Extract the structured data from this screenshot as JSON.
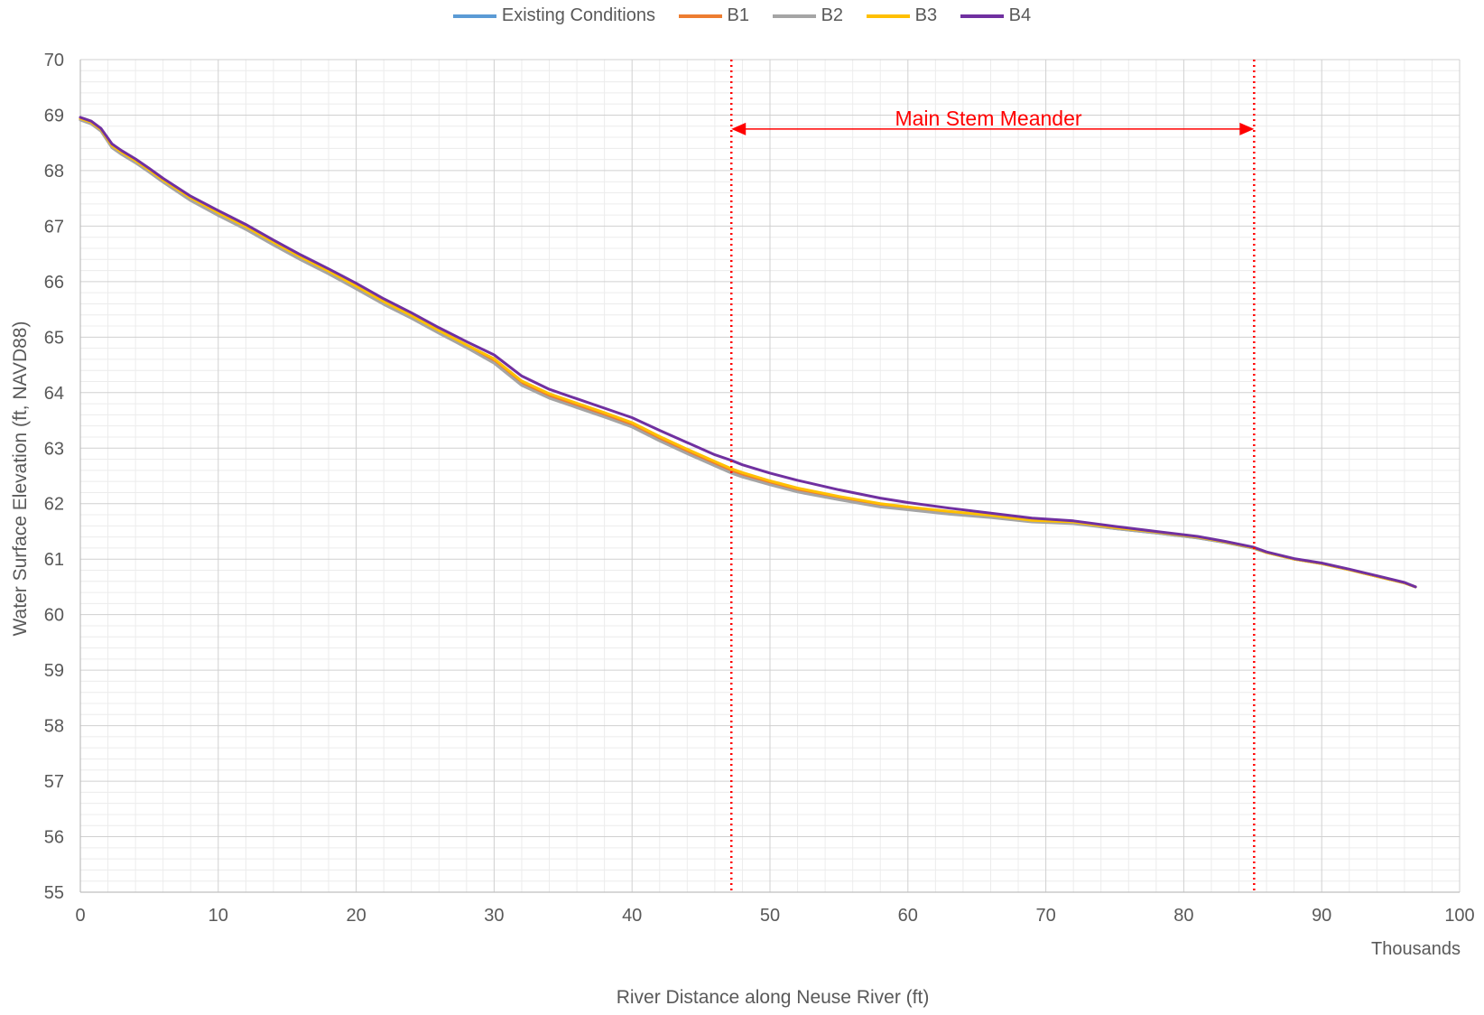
{
  "chart_data": {
    "type": "line",
    "title": "",
    "xlabel": "River Distance along Neuse River (ft)",
    "x_units_label": "Thousands",
    "ylabel": "Water Surface Elevation (ft, NAVD88)",
    "xlim": [
      0,
      100
    ],
    "ylim": [
      55,
      70
    ],
    "x_ticks": [
      "0",
      "10",
      "20",
      "30",
      "40",
      "50",
      "60",
      "70",
      "80",
      "90",
      "100"
    ],
    "y_ticks": [
      "55",
      "56",
      "57",
      "58",
      "59",
      "60",
      "61",
      "62",
      "63",
      "64",
      "65",
      "66",
      "67",
      "68",
      "69",
      "70"
    ],
    "grid": true,
    "minor_grid": true,
    "legend_position": "top",
    "annotation": {
      "text": "Main Stem Meander",
      "x_start": 47.2,
      "x_end": 85.1,
      "y": 68.75,
      "color": "#ff0000"
    },
    "series": [
      {
        "name": "Existing Conditions",
        "color": "#5b9bd5",
        "x": [
          0,
          0.8,
          1.5,
          2.3,
          3,
          4,
          5,
          6,
          8,
          10,
          12,
          14,
          16,
          18,
          20,
          22,
          24,
          26,
          28,
          30,
          32,
          34,
          36,
          38,
          40,
          42,
          44,
          46,
          47.2,
          48,
          50,
          52,
          55,
          58,
          60,
          63,
          66,
          69,
          72,
          75,
          78,
          81,
          83,
          85,
          86,
          88,
          90,
          92,
          94,
          96,
          96.8
        ],
        "values": [
          68.92,
          68.85,
          68.72,
          68.42,
          68.3,
          68.15,
          67.98,
          67.8,
          67.47,
          67.2,
          66.95,
          66.67,
          66.4,
          66.15,
          65.88,
          65.6,
          65.35,
          65.08,
          64.82,
          64.55,
          64.15,
          63.92,
          63.75,
          63.58,
          63.4,
          63.15,
          62.92,
          62.7,
          62.57,
          62.5,
          62.35,
          62.22,
          62.08,
          61.95,
          61.9,
          61.82,
          61.76,
          61.68,
          61.65,
          61.55,
          61.47,
          61.38,
          61.3,
          61.2,
          61.12,
          61.0,
          60.92,
          60.81,
          60.69,
          60.57,
          60.5
        ]
      },
      {
        "name": "B1",
        "color": "#ed7d31",
        "x": [
          0,
          0.8,
          1.5,
          2.3,
          3,
          4,
          5,
          6,
          8,
          10,
          12,
          14,
          16,
          18,
          20,
          22,
          24,
          26,
          28,
          30,
          32,
          34,
          36,
          38,
          40,
          42,
          44,
          46,
          47.2,
          48,
          50,
          52,
          55,
          58,
          60,
          63,
          66,
          69,
          72,
          75,
          78,
          81,
          83,
          85,
          86,
          88,
          90,
          92,
          94,
          96,
          96.8
        ],
        "values": [
          68.93,
          68.86,
          68.73,
          68.43,
          68.31,
          68.16,
          67.99,
          67.81,
          67.49,
          67.22,
          66.97,
          66.69,
          66.42,
          66.17,
          65.9,
          65.62,
          65.37,
          65.1,
          64.84,
          64.58,
          64.18,
          63.95,
          63.78,
          63.61,
          63.43,
          63.18,
          62.95,
          62.73,
          62.6,
          62.53,
          62.38,
          62.25,
          62.1,
          61.97,
          61.92,
          61.84,
          61.77,
          61.69,
          61.66,
          61.56,
          61.48,
          61.39,
          61.31,
          61.21,
          61.12,
          61.0,
          60.92,
          60.81,
          60.69,
          60.57,
          60.5
        ]
      },
      {
        "name": "B2",
        "color": "#a5a5a5",
        "x": [
          0,
          0.8,
          1.5,
          2.3,
          3,
          4,
          5,
          6,
          8,
          10,
          12,
          14,
          16,
          18,
          20,
          22,
          24,
          26,
          28,
          30,
          32,
          34,
          36,
          38,
          40,
          42,
          44,
          46,
          47.2,
          48,
          50,
          52,
          55,
          58,
          60,
          63,
          66,
          69,
          72,
          75,
          78,
          81,
          83,
          85,
          86,
          88,
          90,
          92,
          94,
          96,
          96.8
        ],
        "values": [
          68.91,
          68.84,
          68.71,
          68.41,
          68.29,
          68.14,
          67.97,
          67.79,
          67.46,
          67.19,
          66.94,
          66.66,
          66.39,
          66.14,
          65.87,
          65.59,
          65.34,
          65.07,
          64.81,
          64.53,
          64.13,
          63.9,
          63.73,
          63.56,
          63.38,
          63.13,
          62.9,
          62.68,
          62.55,
          62.48,
          62.34,
          62.21,
          62.07,
          61.94,
          61.89,
          61.81,
          61.75,
          61.67,
          61.64,
          61.55,
          61.47,
          61.38,
          61.3,
          61.2,
          61.12,
          61.0,
          60.92,
          60.81,
          60.69,
          60.57,
          60.5
        ]
      },
      {
        "name": "B3",
        "color": "#ffc000",
        "x": [
          0,
          0.8,
          1.5,
          2.3,
          3,
          4,
          5,
          6,
          8,
          10,
          12,
          14,
          16,
          18,
          20,
          22,
          24,
          26,
          28,
          30,
          32,
          34,
          36,
          38,
          40,
          42,
          44,
          46,
          47.2,
          48,
          50,
          52,
          55,
          58,
          60,
          63,
          66,
          69,
          72,
          75,
          78,
          81,
          83,
          85,
          86,
          88,
          90,
          92,
          94,
          96,
          96.8
        ],
        "values": [
          68.94,
          68.87,
          68.74,
          68.45,
          68.33,
          68.18,
          68.01,
          67.83,
          67.51,
          67.24,
          66.99,
          66.71,
          66.44,
          66.19,
          65.92,
          65.64,
          65.39,
          65.12,
          64.86,
          64.61,
          64.21,
          63.98,
          63.81,
          63.64,
          63.46,
          63.21,
          62.98,
          62.76,
          62.63,
          62.56,
          62.41,
          62.28,
          62.13,
          62.0,
          61.94,
          61.86,
          61.79,
          61.7,
          61.67,
          61.57,
          61.49,
          61.4,
          61.31,
          61.21,
          61.12,
          61.0,
          60.92,
          60.81,
          60.69,
          60.57,
          60.5
        ]
      },
      {
        "name": "B4",
        "color": "#7030a0",
        "x": [
          0,
          0.8,
          1.5,
          2.3,
          3,
          4,
          5,
          6,
          8,
          10,
          12,
          14,
          16,
          18,
          20,
          22,
          24,
          26,
          28,
          30,
          32,
          34,
          36,
          38,
          40,
          42,
          44,
          46,
          47.2,
          48,
          50,
          52,
          55,
          58,
          60,
          63,
          66,
          69,
          72,
          75,
          78,
          81,
          83,
          85,
          86,
          88,
          90,
          92,
          94,
          96,
          96.8
        ],
        "values": [
          68.96,
          68.89,
          68.76,
          68.48,
          68.36,
          68.21,
          68.04,
          67.86,
          67.54,
          67.28,
          67.03,
          66.75,
          66.48,
          66.23,
          65.97,
          65.69,
          65.44,
          65.17,
          64.92,
          64.68,
          64.3,
          64.06,
          63.89,
          63.72,
          63.55,
          63.32,
          63.1,
          62.88,
          62.78,
          62.7,
          62.55,
          62.42,
          62.25,
          62.1,
          62.02,
          61.92,
          61.83,
          61.74,
          61.69,
          61.59,
          61.5,
          61.41,
          61.32,
          61.22,
          61.13,
          61.01,
          60.93,
          60.82,
          60.7,
          60.58,
          60.5
        ]
      }
    ]
  }
}
